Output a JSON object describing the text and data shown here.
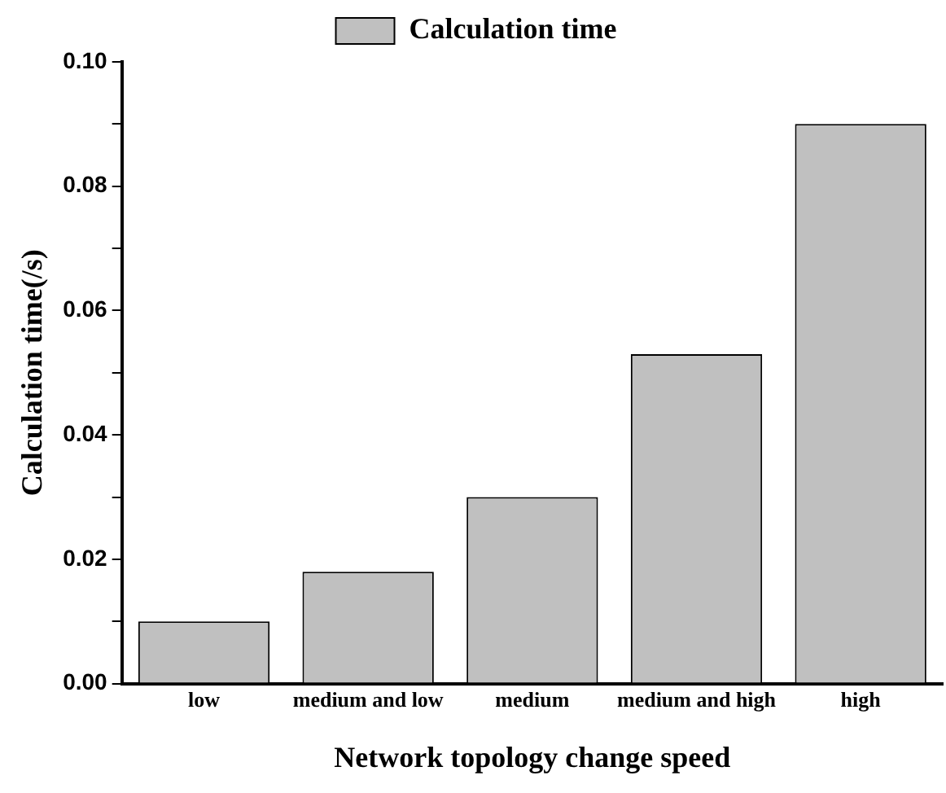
{
  "chart_data": {
    "type": "bar",
    "xlabel": "Network topology change speed",
    "ylabel": "Calculation time(/s)",
    "categories": [
      "low",
      "medium and low",
      "medium",
      "medium and high",
      "high"
    ],
    "series": [
      {
        "name": "Calculation time",
        "color": "#c0c0c0",
        "values": [
          0.01,
          0.018,
          0.03,
          0.053,
          0.09
        ]
      }
    ],
    "ylim": [
      0,
      0.1
    ],
    "yticks": [
      {
        "value": 0,
        "label": "0.00"
      },
      {
        "value": 0.01,
        "label": null
      },
      {
        "value": 0.02,
        "label": "0.02"
      },
      {
        "value": 0.03,
        "label": null
      },
      {
        "value": 0.04,
        "label": "0.04"
      },
      {
        "value": 0.05,
        "label": null
      },
      {
        "value": 0.06,
        "label": "0.06"
      },
      {
        "value": 0.07,
        "label": null
      },
      {
        "value": 0.08,
        "label": "0.08"
      },
      {
        "value": 0.09,
        "label": null
      },
      {
        "value": 0.1,
        "label": "0.10"
      }
    ],
    "grid": false,
    "legend": "top"
  }
}
